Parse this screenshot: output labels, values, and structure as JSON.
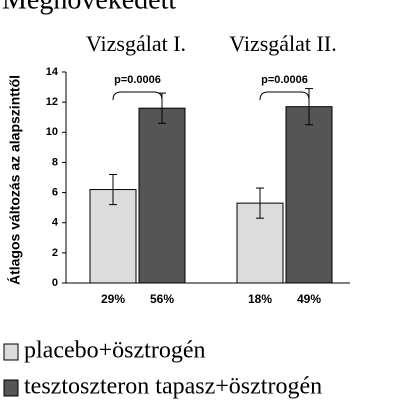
{
  "chart_data": {
    "type": "bar",
    "title": "Megnövekedett",
    "ylabel": "Átlagos változás az alapszinttől",
    "categories": [
      "Vizsgálat I.",
      "Vizsgálat II."
    ],
    "series": [
      {
        "name": "placebo+ösztrogén",
        "color": "#dcdcdc",
        "values": [
          6.2,
          5.3
        ],
        "errors": [
          1.0,
          1.0
        ]
      },
      {
        "name": "tesztoszteron tapasz+ösztrogén",
        "color": "#555555",
        "values": [
          11.6,
          11.7
        ],
        "errors": [
          1.0,
          1.2
        ]
      }
    ],
    "percent_labels": [
      [
        "29%",
        "56%"
      ],
      [
        "18%",
        "49%"
      ]
    ],
    "annotations": [
      "p=0.0006",
      "p=0.0006"
    ],
    "ylim": [
      0,
      14
    ],
    "yticks": [
      0,
      2,
      4,
      6,
      8,
      10,
      12,
      14
    ]
  }
}
